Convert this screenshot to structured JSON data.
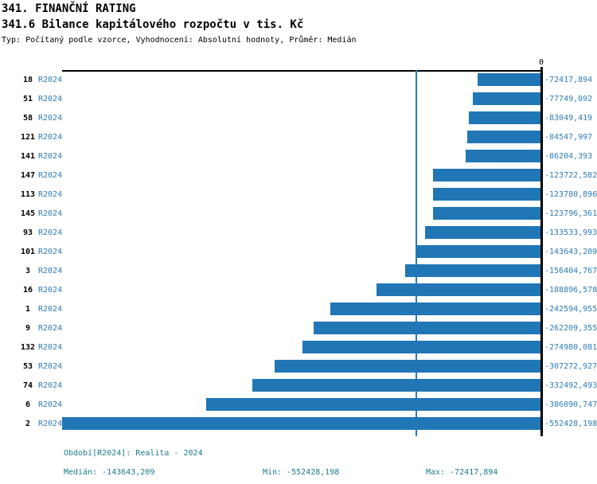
{
  "header": {
    "title": "341. FINANČNÍ RATING",
    "subtitle": "341.6 Bilance kapitálového rozpočtu v tis. Kč",
    "meta": "Typ: Počítaný podle vzorce, Vyhodnocení: Absolutní hodnoty, Průměr: Medián"
  },
  "chart_data": {
    "type": "bar",
    "orientation": "horizontal",
    "title": "341.6 Bilance kapitálového rozpočtu v tis. Kč",
    "series_name": "R2024",
    "categories": [
      "18",
      "51",
      "58",
      "121",
      "141",
      "147",
      "113",
      "145",
      "93",
      "101",
      "3",
      "16",
      "1",
      "9",
      "132",
      "53",
      "74",
      "6",
      "2"
    ],
    "values": [
      -72417.894,
      -77749.092,
      -83049.419,
      -84547.997,
      -86204.393,
      -123722.582,
      -123780.896,
      -123796.361,
      -133533.993,
      -143643.209,
      -156404.767,
      -188896.578,
      -242594.955,
      -262209.355,
      -274980.081,
      -307272.927,
      -332492.493,
      -386090.747,
      -552428.198
    ],
    "value_labels": [
      "-72417,894",
      "-77749,092",
      "-83049,419",
      "-84547,997",
      "-86204,393",
      "-123722,582",
      "-123780,896",
      "-123796,361",
      "-133533,993",
      "-143643,209",
      "-156404,767",
      "-188896,578",
      "-242594,955",
      "-262209,355",
      "-274980,081",
      "-307272,927",
      "-332492,493",
      "-386090,747",
      "-552428,198"
    ],
    "xlim": [
      -552428.198,
      0
    ],
    "zero_tick_label": "0",
    "median_value": -143643.209,
    "grid": false,
    "legend_position": "none",
    "bar_color": "#2176b5",
    "median_line_color": "#2b7bb8",
    "value_label_color": "#2e7cb8",
    "axis_color": "#000000"
  },
  "footer": {
    "period": "Období[R2024]: Realita - 2024",
    "median": "Medián: -143643,209",
    "min": "Min: -552428,198",
    "max": "Max: -72417,894"
  }
}
